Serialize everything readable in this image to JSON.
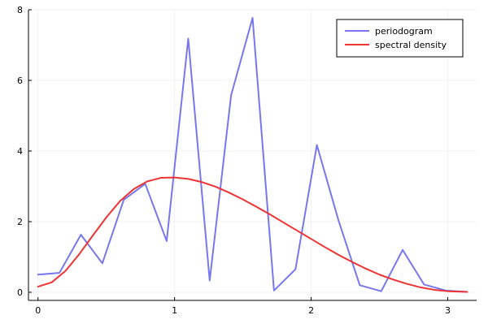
{
  "chart_data": {
    "type": "line",
    "title": "",
    "xlabel": "",
    "ylabel": "",
    "xlim": [
      0,
      3.14159
    ],
    "ylim": [
      0,
      8
    ],
    "x_ticks": [
      0,
      1,
      2,
      3
    ],
    "y_ticks": [
      0,
      2,
      4,
      6,
      8
    ],
    "grid": true,
    "legend_position": "top-right",
    "series": [
      {
        "name": "periodogram",
        "color": "#7777ee",
        "x": [
          0,
          0.157,
          0.314,
          0.471,
          0.628,
          0.785,
          0.942,
          1.1,
          1.257,
          1.414,
          1.571,
          1.728,
          1.885,
          2.042,
          2.199,
          2.356,
          2.513,
          2.67,
          2.827,
          2.985,
          3.142
        ],
        "y": [
          0.5,
          0.55,
          1.63,
          0.82,
          2.62,
          3.07,
          1.45,
          7.18,
          0.33,
          5.58,
          7.77,
          0.05,
          0.65,
          4.17,
          2.05,
          0.2,
          0.03,
          1.2,
          0.22,
          0.05,
          0.01
        ]
      },
      {
        "name": "spectral density",
        "color": "#ee3333",
        "x": [
          0,
          0.1,
          0.2,
          0.3,
          0.4,
          0.5,
          0.6,
          0.7,
          0.8,
          0.9,
          1.0,
          1.1,
          1.2,
          1.3,
          1.4,
          1.5,
          1.6,
          1.7,
          1.8,
          1.9,
          2.0,
          2.1,
          2.2,
          2.3,
          2.4,
          2.5,
          2.6,
          2.7,
          2.8,
          2.9,
          3.0,
          3.142
        ],
        "y": [
          0.16,
          0.28,
          0.6,
          1.07,
          1.6,
          2.12,
          2.58,
          2.92,
          3.14,
          3.24,
          3.25,
          3.21,
          3.12,
          2.99,
          2.82,
          2.63,
          2.42,
          2.2,
          1.97,
          1.74,
          1.51,
          1.28,
          1.06,
          0.86,
          0.67,
          0.5,
          0.36,
          0.24,
          0.14,
          0.07,
          0.03,
          0.01
        ]
      }
    ]
  }
}
